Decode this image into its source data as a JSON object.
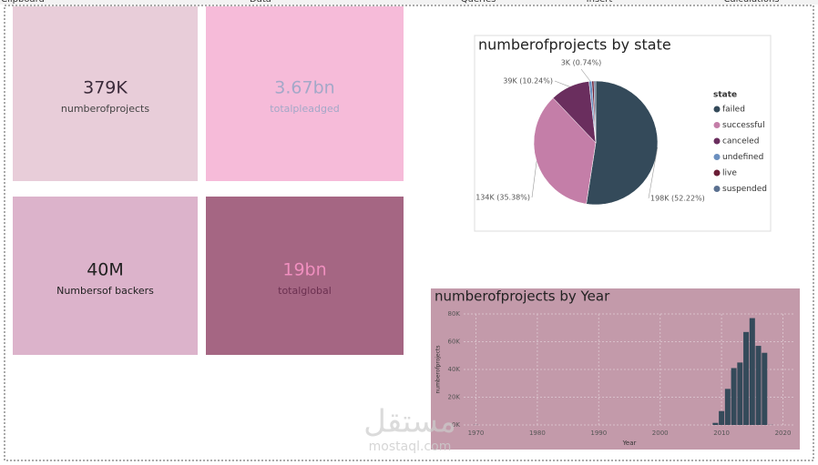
{
  "ribbon": [
    "Clipboard",
    "Data",
    "Queries",
    "Insert",
    "Calculations"
  ],
  "cards": [
    {
      "value": "379K",
      "label": "numberofprojects"
    },
    {
      "value": "3.67bn",
      "label": "totalpleadged"
    },
    {
      "value": "40M",
      "label": "Numbersof backers"
    },
    {
      "value": "19bn",
      "label": "totalglobal"
    }
  ],
  "chart_data": [
    {
      "type": "pie",
      "title": "numberofprojects by state",
      "legend_title": "state",
      "legend": "right",
      "categories": [
        "failed",
        "successful",
        "canceled",
        "undefined",
        "live",
        "suspended"
      ],
      "values": [
        198000,
        134000,
        39000,
        2800,
        2000,
        1800
      ],
      "value_labels": [
        "198K (52.22%)",
        "134K (35.38%)",
        "39K (10.24%)",
        "3K (0.74%)",
        null,
        null
      ],
      "colors": [
        "#344a5a",
        "#c47ea8",
        "#6a2e5e",
        "#6b8fbf",
        "#6b1e36",
        "#5a7090"
      ]
    },
    {
      "type": "bar",
      "title": "numberofprojects by Year",
      "x_label": "Year",
      "y_label": "numberofprojects",
      "x": [
        1970,
        2009,
        2010,
        2011,
        2012,
        2013,
        2014,
        2015,
        2016,
        2017,
        2018
      ],
      "values": [
        100,
        1500,
        10000,
        26000,
        41000,
        45000,
        67000,
        77000,
        57000,
        52000,
        100
      ],
      "color": "#344a5a",
      "grid": true,
      "xlim": [
        1968,
        2022
      ],
      "xticks": [
        1970,
        1980,
        1990,
        2000,
        2010,
        2020
      ],
      "ylim": [
        0,
        80000
      ],
      "yticks": [
        {
          "value": 0,
          "label": "0K"
        },
        {
          "value": 20000,
          "label": "20K"
        },
        {
          "value": 40000,
          "label": "40K"
        },
        {
          "value": 60000,
          "label": "60K"
        },
        {
          "value": 80000,
          "label": "80K"
        }
      ]
    }
  ],
  "watermark": {
    "arabic": "مستقل",
    "latin": "mostaql.com"
  }
}
